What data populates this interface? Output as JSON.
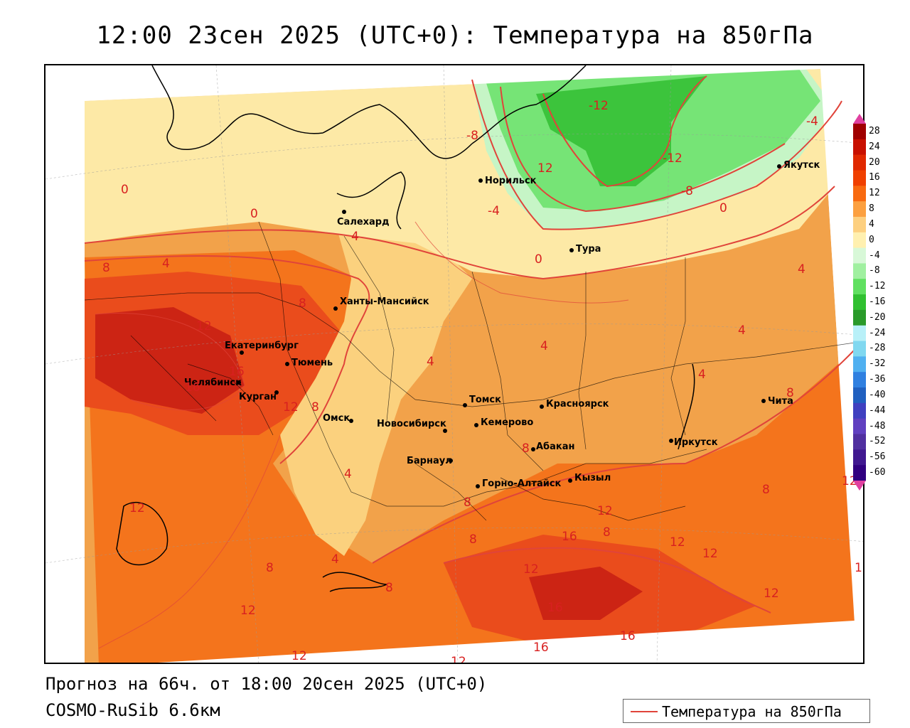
{
  "title": "12:00 23сен 2025 (UTC+0): Температура на 850гПа",
  "forecast_line": "Прогноз на 66ч. от 18:00 20сен 2025 (UTC+0)",
  "model_line": "COSMO-RuSib 6.6км",
  "legend": {
    "label": "Температура на 850гПа",
    "line_color": "#e0443a"
  },
  "scale": {
    "labels": [
      "28",
      "24",
      "20",
      "16",
      "12",
      "8",
      "4",
      "0",
      "-4",
      "-8",
      "-12",
      "-16",
      "-20",
      "-24",
      "-28",
      "-32",
      "-36",
      "-40",
      "-44",
      "-48",
      "-52",
      "-56",
      "-60"
    ],
    "colors": [
      "#a00000",
      "#c81000",
      "#e02800",
      "#f04000",
      "#f86a10",
      "#fca040",
      "#fdd080",
      "#fff0b0",
      "#d8f8d8",
      "#a0f0a0",
      "#60e060",
      "#30c030",
      "#2a9a2a",
      "#b8f0f8",
      "#80d8f0",
      "#50b0f0",
      "#3080e0",
      "#2060c0",
      "#4040c0",
      "#6040c0",
      "#5030a0",
      "#401890",
      "#300080"
    ],
    "top_arrow_color": "#e040a0",
    "bottom_arrow_color": "#e040a0"
  },
  "cities": [
    {
      "name": "Норильск"
    },
    {
      "name": "Якутск"
    },
    {
      "name": "Салехард"
    },
    {
      "name": "Тура"
    },
    {
      "name": "Ханты-Мансийск"
    },
    {
      "name": "Екатеринбург"
    },
    {
      "name": "Тюмень"
    },
    {
      "name": "Челябинск"
    },
    {
      "name": "Курган"
    },
    {
      "name": "Омск"
    },
    {
      "name": "Томск"
    },
    {
      "name": "Красноярск"
    },
    {
      "name": "Новосибирск"
    },
    {
      "name": "Кемерово"
    },
    {
      "name": "Абакан"
    },
    {
      "name": "Барнаул"
    },
    {
      "name": "Иркутск"
    },
    {
      "name": "Чита"
    },
    {
      "name": "Горно-Алтайск"
    },
    {
      "name": "Кызыл"
    }
  ],
  "isoline_labels": [
    "-12",
    "-8",
    "12",
    "-12",
    "-8",
    "0",
    "-4",
    "0",
    "0",
    "4",
    "0",
    "8",
    "4",
    "12",
    "8",
    "4",
    "12",
    "16",
    "16",
    "12",
    "8",
    "4",
    "4",
    "4",
    "8",
    "12",
    "8",
    "8",
    "16",
    "8",
    "8",
    "12",
    "12",
    "16",
    "12",
    "12",
    "16",
    "16",
    "12",
    "12",
    "12",
    "8",
    "12",
    "4",
    "8",
    "4",
    "4",
    "-4",
    "12",
    "8",
    "1",
    "12"
  ]
}
